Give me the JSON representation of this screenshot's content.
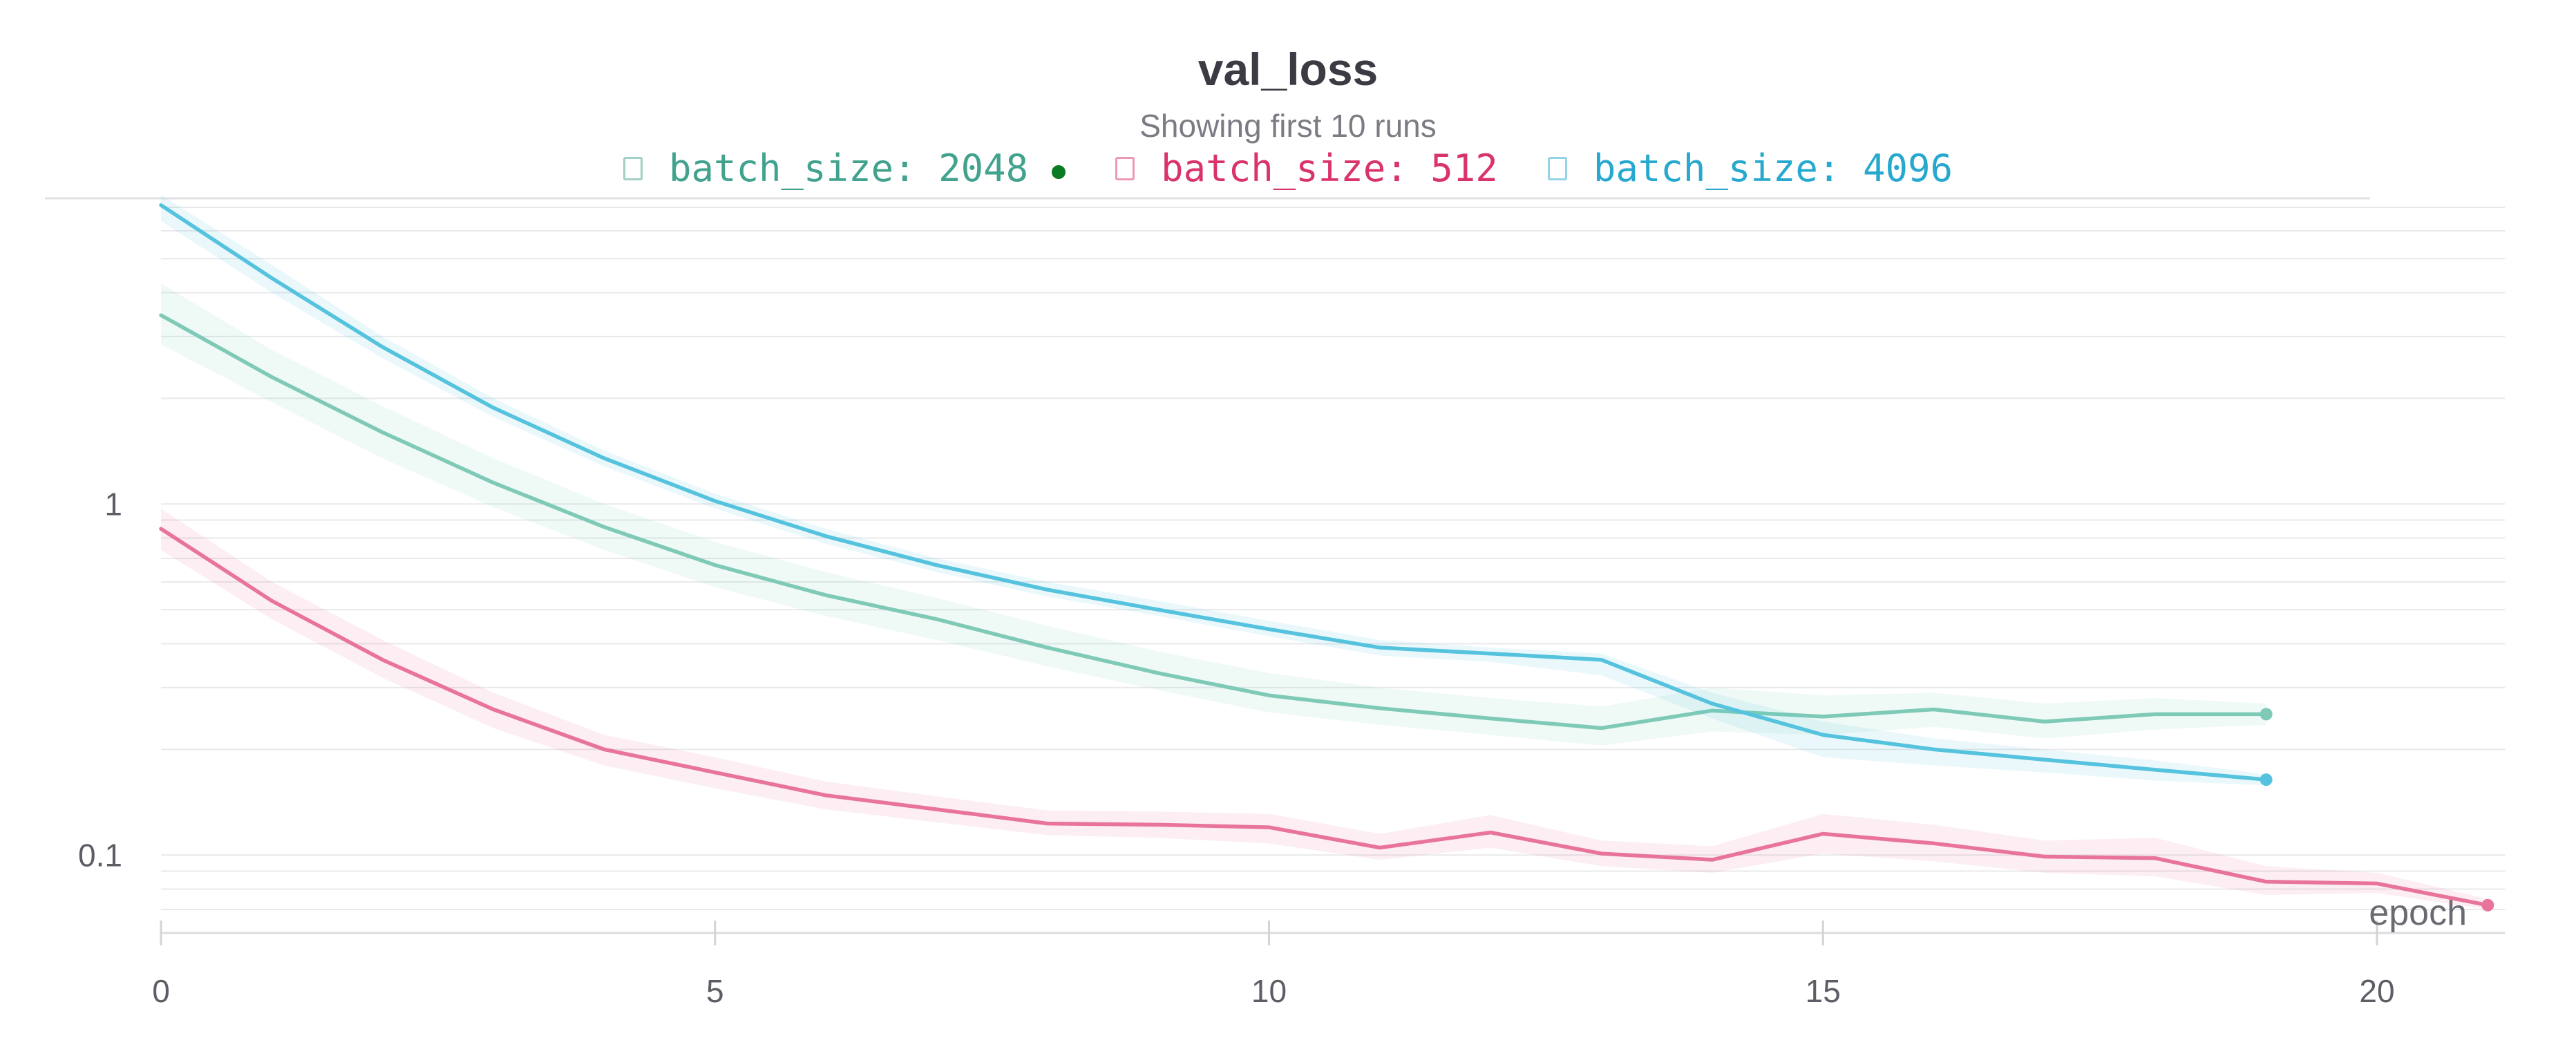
{
  "title": "val_loss",
  "subtitle": "Showing first 10 runs",
  "colors": {
    "batch_2048": "#7fcab7",
    "batch_512": "#e8749a",
    "batch_4096": "#55c2de",
    "legend_2048_text": "#41a28d",
    "legend_512_text": "#d9336d",
    "legend_4096_text": "#26a8cf",
    "active_dot": "#0a7a23"
  },
  "legend": [
    {
      "label": "batch_size: 2048",
      "color_key": "legend_2048_text",
      "active": true
    },
    {
      "label": "batch_size: 512",
      "color_key": "legend_512_text",
      "active": false
    },
    {
      "label": "batch_size: 4096",
      "color_key": "legend_4096_text",
      "active": false
    }
  ],
  "chart_data": {
    "type": "line",
    "title": "val_loss",
    "subtitle": "Showing first 10 runs",
    "xlabel": "epoch",
    "ylabel": "",
    "xlim": [
      0,
      21
    ],
    "ylim": [
      0.06,
      7
    ],
    "y_scale": "log",
    "x_ticks": [
      0,
      5,
      10,
      15,
      20
    ],
    "y_ticks": [
      {
        "value": 0.1,
        "label": "0.1"
      },
      {
        "value": 1,
        "label": "1"
      }
    ],
    "grid": true,
    "legend_position": "top-center",
    "series": [
      {
        "name": "batch_size: 2048",
        "color_key": "batch_2048",
        "x": [
          0,
          1,
          2,
          3,
          4,
          5,
          6,
          7,
          8,
          9,
          10,
          11,
          12,
          13,
          14,
          15,
          16,
          17,
          18,
          19
        ],
        "values": [
          3.45,
          2.3,
          1.6,
          1.15,
          0.86,
          0.67,
          0.55,
          0.47,
          0.39,
          0.33,
          0.285,
          0.262,
          0.245,
          0.23,
          0.258,
          0.248,
          0.26,
          0.24,
          0.252,
          0.252
        ],
        "band_low": [
          2.85,
          1.95,
          1.35,
          0.98,
          0.74,
          0.58,
          0.48,
          0.41,
          0.345,
          0.295,
          0.255,
          0.235,
          0.22,
          0.205,
          0.225,
          0.22,
          0.232,
          0.215,
          0.228,
          0.235
        ],
        "band_high": [
          4.25,
          2.75,
          1.9,
          1.35,
          1.0,
          0.78,
          0.64,
          0.54,
          0.45,
          0.38,
          0.33,
          0.3,
          0.28,
          0.265,
          0.3,
          0.285,
          0.29,
          0.27,
          0.28,
          0.27
        ]
      },
      {
        "name": "batch_size: 512",
        "color_key": "batch_512",
        "x": [
          0,
          1,
          2,
          3,
          4,
          5,
          6,
          7,
          8,
          9,
          10,
          11,
          12,
          13,
          14,
          15,
          16,
          17,
          18,
          19,
          20,
          21
        ],
        "values": [
          0.85,
          0.53,
          0.36,
          0.26,
          0.2,
          0.172,
          0.148,
          0.135,
          0.123,
          0.122,
          0.12,
          0.105,
          0.116,
          0.101,
          0.097,
          0.115,
          0.108,
          0.099,
          0.098,
          0.084,
          0.083,
          0.072
        ],
        "band_low": [
          0.74,
          0.47,
          0.32,
          0.23,
          0.18,
          0.155,
          0.135,
          0.124,
          0.114,
          0.112,
          0.108,
          0.097,
          0.105,
          0.093,
          0.089,
          0.101,
          0.096,
          0.089,
          0.087,
          0.077,
          0.078,
          0.07
        ],
        "band_high": [
          0.97,
          0.6,
          0.41,
          0.29,
          0.22,
          0.19,
          0.162,
          0.147,
          0.134,
          0.133,
          0.131,
          0.115,
          0.13,
          0.11,
          0.106,
          0.131,
          0.122,
          0.11,
          0.112,
          0.093,
          0.089,
          0.075
        ]
      },
      {
        "name": "batch_size: 4096",
        "color_key": "batch_4096",
        "x": [
          0,
          1,
          2,
          3,
          4,
          5,
          6,
          7,
          8,
          9,
          10,
          11,
          12,
          13,
          14,
          15,
          16,
          17,
          18,
          19
        ],
        "values": [
          7.1,
          4.4,
          2.8,
          1.88,
          1.35,
          1.02,
          0.81,
          0.67,
          0.57,
          0.5,
          0.44,
          0.39,
          0.375,
          0.36,
          0.27,
          0.22,
          0.2,
          0.187,
          0.175,
          0.164
        ],
        "band_low": [
          6.4,
          4.0,
          2.6,
          1.77,
          1.28,
          0.97,
          0.77,
          0.64,
          0.545,
          0.48,
          0.42,
          0.37,
          0.355,
          0.325,
          0.245,
          0.19,
          0.18,
          0.172,
          0.163,
          0.158
        ],
        "band_high": [
          7.6,
          4.8,
          3.0,
          2.0,
          1.42,
          1.07,
          0.85,
          0.7,
          0.6,
          0.53,
          0.465,
          0.41,
          0.39,
          0.375,
          0.29,
          0.24,
          0.215,
          0.2,
          0.186,
          0.17
        ]
      }
    ]
  }
}
